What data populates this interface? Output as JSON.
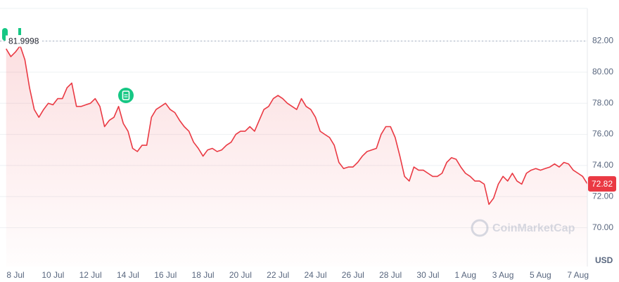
{
  "chart_data": {
    "type": "line",
    "color": "#ea3943",
    "categories": [
      null,
      null,
      "8 Jul",
      null,
      null,
      null,
      null,
      null,
      null,
      null,
      "10 Jul",
      null,
      null,
      null,
      null,
      null,
      null,
      null,
      "12 Jul",
      null,
      null,
      null,
      null,
      null,
      null,
      null,
      "14 Jul",
      null,
      null,
      null,
      null,
      null,
      null,
      null,
      "16 Jul",
      null,
      null,
      null,
      null,
      null,
      null,
      null,
      "18 Jul",
      null,
      null,
      null,
      null,
      null,
      null,
      null,
      "20 Jul",
      null,
      null,
      null,
      null,
      null,
      null,
      null,
      "22 Jul",
      null,
      null,
      null,
      null,
      null,
      null,
      null,
      "24 Jul",
      null,
      null,
      null,
      null,
      null,
      null,
      null,
      "26 Jul",
      null,
      null,
      null,
      null,
      null,
      null,
      null,
      "28 Jul",
      null,
      null,
      null,
      null,
      null,
      null,
      null,
      "30 Jul",
      null,
      null,
      null,
      null,
      null,
      null,
      null,
      "1 Aug",
      null,
      null,
      null,
      null,
      null,
      null,
      null,
      "3 Aug",
      null,
      null,
      null,
      null,
      null,
      null,
      null,
      "5 Aug",
      null,
      null,
      null,
      null,
      null,
      null,
      null,
      "7 Aug",
      null,
      null
    ],
    "values": [
      81.5,
      81.0,
      81.3,
      81.7,
      80.8,
      79.0,
      77.6,
      77.1,
      77.6,
      78.0,
      77.9,
      78.3,
      78.3,
      79.0,
      79.3,
      77.8,
      77.8,
      77.9,
      78.0,
      78.3,
      77.8,
      76.5,
      76.9,
      77.1,
      77.8,
      76.7,
      76.2,
      75.1,
      74.9,
      75.3,
      75.3,
      77.1,
      77.6,
      77.8,
      78.0,
      77.6,
      77.4,
      76.9,
      76.5,
      76.2,
      75.5,
      75.1,
      74.6,
      75.0,
      75.1,
      74.9,
      75.0,
      75.3,
      75.5,
      76.0,
      76.2,
      76.2,
      76.5,
      76.2,
      76.9,
      77.6,
      77.8,
      78.3,
      78.5,
      78.3,
      78.0,
      77.8,
      77.6,
      78.3,
      77.8,
      77.6,
      77.1,
      76.2,
      76.0,
      75.8,
      75.3,
      74.2,
      73.8,
      73.9,
      73.9,
      74.2,
      74.6,
      74.9,
      75.0,
      75.1,
      76.0,
      76.5,
      76.5,
      75.8,
      74.6,
      73.3,
      73.0,
      73.9,
      73.7,
      73.7,
      73.5,
      73.3,
      73.3,
      73.5,
      74.2,
      74.5,
      74.4,
      73.9,
      73.5,
      73.3,
      73.0,
      73.0,
      72.8,
      71.5,
      71.9,
      72.8,
      73.3,
      73.0,
      73.5,
      73.0,
      72.8,
      73.5,
      73.7,
      73.8,
      73.7,
      73.8,
      73.9,
      74.1,
      73.9,
      74.2,
      74.1,
      73.7,
      73.5,
      73.3,
      72.82
    ],
    "ylim": [
      67.5,
      84.1
    ],
    "yticks": [
      {
        "value": 70,
        "label": "70.00"
      },
      {
        "value": 72,
        "label": "72.00"
      },
      {
        "value": 74,
        "label": "74.00"
      },
      {
        "value": 76,
        "label": "76.00"
      },
      {
        "value": 78,
        "label": "78.00"
      },
      {
        "value": 80,
        "label": "80.00"
      },
      {
        "value": 82,
        "label": "82.00"
      }
    ],
    "grid": true,
    "reference_line": 81.9998,
    "currency": "USD",
    "watermark": "CoinMarketCap"
  }
}
